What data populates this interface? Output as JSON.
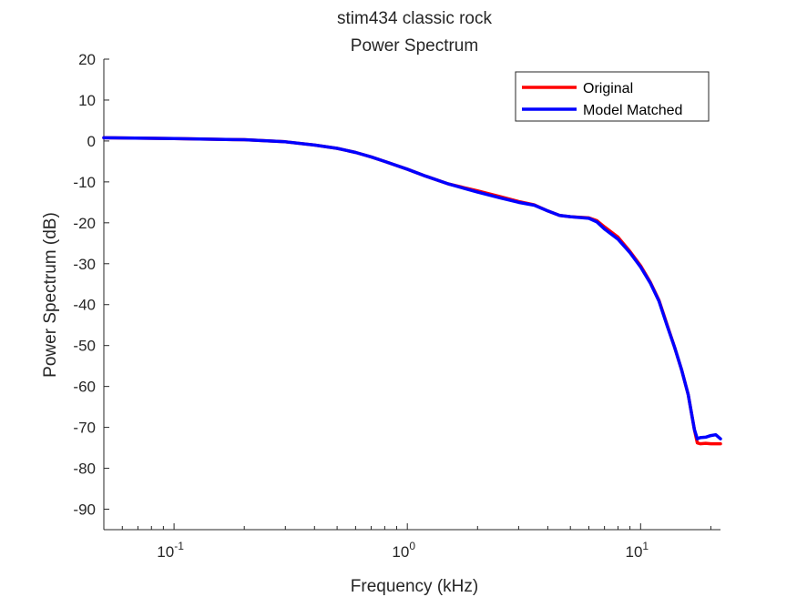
{
  "chart_data": {
    "type": "line",
    "title": "stim434 classic rock",
    "subtitle": "Power Spectrum",
    "xlabel": "Frequency (kHz)",
    "ylabel": "Power Spectrum (dB)",
    "xscale": "log",
    "xlim": [
      0.05,
      22
    ],
    "ylim": [
      -95,
      20
    ],
    "x_ticks": [
      {
        "value": 0.1,
        "base": "10",
        "exp": "-1"
      },
      {
        "value": 1,
        "base": "10",
        "exp": "0"
      },
      {
        "value": 10,
        "base": "10",
        "exp": "1"
      }
    ],
    "y_ticks": [
      20,
      10,
      0,
      -10,
      -20,
      -30,
      -40,
      -50,
      -60,
      -70,
      -80,
      -90
    ],
    "grid": false,
    "legend_position": "top-right",
    "series": [
      {
        "name": "Original",
        "color": "#ff0000",
        "x": [
          0.05,
          0.1,
          0.2,
          0.3,
          0.4,
          0.5,
          0.6,
          0.7,
          0.8,
          1.0,
          1.2,
          1.5,
          2.0,
          2.5,
          3.0,
          3.5,
          4.0,
          4.5,
          5.0,
          6.0,
          6.5,
          7.0,
          8.0,
          9.0,
          10.0,
          11.0,
          12.0,
          13.0,
          14.0,
          15.0,
          16.0,
          17.0,
          17.5,
          18.0,
          19.0,
          20.0,
          21.0,
          22.0
        ],
        "values": [
          0.8,
          0.6,
          0.3,
          -0.2,
          -1.0,
          -1.8,
          -2.8,
          -3.9,
          -5.0,
          -6.9,
          -8.6,
          -10.5,
          -12.2,
          -13.6,
          -14.8,
          -15.6,
          -17.1,
          -18.2,
          -18.5,
          -18.8,
          -19.5,
          -21.0,
          -23.5,
          -27.0,
          -30.5,
          -34.5,
          -39.0,
          -45.0,
          -50.5,
          -56.0,
          -62.0,
          -70.5,
          -73.8,
          -74.0,
          -73.9,
          -74.0,
          -74.0,
          -74.0
        ]
      },
      {
        "name": "Model Matched",
        "color": "#0000ff",
        "x": [
          0.05,
          0.1,
          0.2,
          0.3,
          0.4,
          0.5,
          0.6,
          0.7,
          0.8,
          1.0,
          1.2,
          1.5,
          2.0,
          2.5,
          3.0,
          3.5,
          4.0,
          4.5,
          5.0,
          6.0,
          6.5,
          7.0,
          8.0,
          9.0,
          10.0,
          11.0,
          12.0,
          13.0,
          14.0,
          15.0,
          16.0,
          17.0,
          17.5,
          18.0,
          19.0,
          20.0,
          21.0,
          22.0
        ],
        "values": [
          0.8,
          0.6,
          0.3,
          -0.2,
          -1.0,
          -1.8,
          -2.8,
          -3.9,
          -5.0,
          -6.9,
          -8.6,
          -10.5,
          -12.5,
          -13.9,
          -15.0,
          -15.7,
          -17.1,
          -18.2,
          -18.5,
          -18.9,
          -19.8,
          -21.5,
          -24.0,
          -27.3,
          -30.8,
          -34.7,
          -39.2,
          -45.2,
          -50.5,
          -56.0,
          -62.0,
          -70.5,
          -72.8,
          -72.5,
          -72.4,
          -72.0,
          -71.8,
          -72.8
        ]
      }
    ]
  }
}
